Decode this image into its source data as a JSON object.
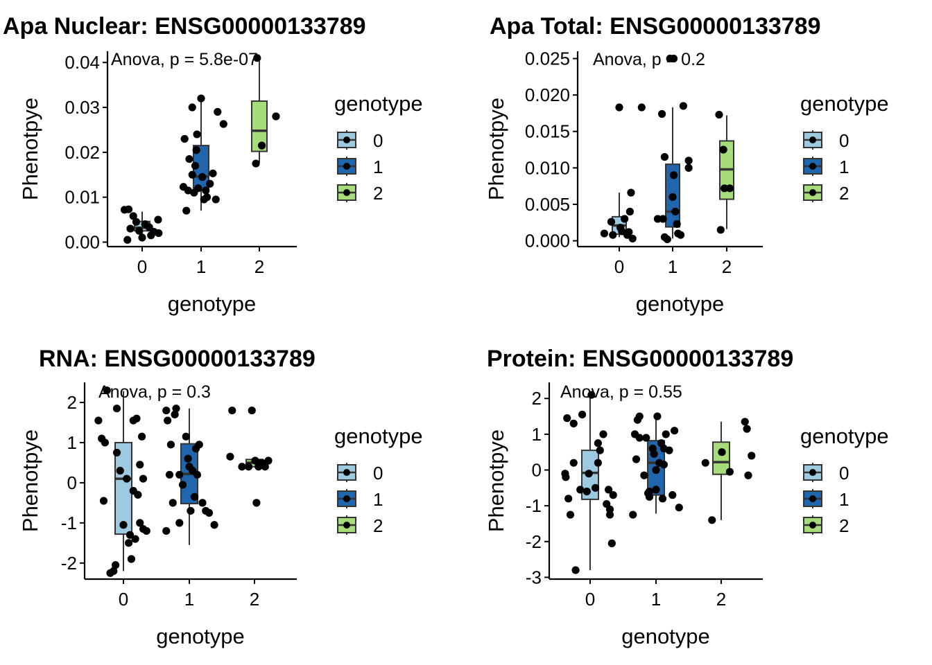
{
  "legend": {
    "title": "genotype",
    "levels": [
      "0",
      "1",
      "2"
    ],
    "colors": [
      "#9ECAE1",
      "#2166AC",
      "#A6DC79"
    ]
  },
  "chart_data": [
    {
      "type": "box",
      "title": "Apa Nuclear: ENSG00000133789",
      "xlabel": "genotype",
      "ylabel": "Phenotpye",
      "categories": [
        "0",
        "1",
        "2"
      ],
      "ylim": [
        -0.001,
        0.0425
      ],
      "yticks": [
        0,
        0.01,
        0.02,
        0.03,
        0.04
      ],
      "ytick_labels": [
        "0.00",
        "0.01",
        "0.02",
        "0.03",
        "0.04"
      ],
      "annotation": "Anova, p = 5.8e-07",
      "boxes": [
        {
          "q1": 0.0025,
          "median": 0.0032,
          "q3": 0.0046,
          "lower": 0.0013,
          "upper": 0.0068
        },
        {
          "q1": 0.0116,
          "median": 0.0146,
          "q3": 0.0215,
          "lower": 0.007,
          "upper": 0.032
        },
        {
          "q1": 0.0202,
          "median": 0.0248,
          "q3": 0.0314,
          "lower": 0.0177,
          "upper": 0.0412
        }
      ],
      "points": [
        {
          "x": -0.3,
          "y": 0.0072
        },
        {
          "x": -0.23,
          "y": 0.0073
        },
        {
          "x": -0.15,
          "y": 0.0058
        },
        {
          "x": -0.1,
          "y": 0.0045
        },
        {
          "x": -0.2,
          "y": 0.003
        },
        {
          "x": -0.05,
          "y": 0.0025
        },
        {
          "x": 0.0,
          "y": 0.001
        },
        {
          "x": 0.05,
          "y": 0.004
        },
        {
          "x": 0.12,
          "y": 0.0033
        },
        {
          "x": 0.2,
          "y": 0.0023
        },
        {
          "x": 0.28,
          "y": 0.002
        },
        {
          "x": 0.27,
          "y": 0.005
        },
        {
          "x": -0.25,
          "y": 0.0005
        },
        {
          "x": 0.15,
          "y": 0.0015
        },
        {
          "x": 0.7,
          "y": 0.0123
        },
        {
          "x": 0.72,
          "y": 0.023
        },
        {
          "x": 0.75,
          "y": 0.007
        },
        {
          "x": 0.78,
          "y": 0.0115
        },
        {
          "x": 0.8,
          "y": 0.0185
        },
        {
          "x": 0.85,
          "y": 0.03
        },
        {
          "x": 0.85,
          "y": 0.015
        },
        {
          "x": 0.88,
          "y": 0.011
        },
        {
          "x": 0.9,
          "y": 0.017
        },
        {
          "x": 0.92,
          "y": 0.0205
        },
        {
          "x": 0.95,
          "y": 0.012
        },
        {
          "x": 1.0,
          "y": 0.032
        },
        {
          "x": 1.02,
          "y": 0.0145
        },
        {
          "x": 1.05,
          "y": 0.0095
        },
        {
          "x": 1.08,
          "y": 0.0115
        },
        {
          "x": 1.1,
          "y": 0.01
        },
        {
          "x": 1.15,
          "y": 0.013
        },
        {
          "x": 1.2,
          "y": 0.0153
        },
        {
          "x": 1.25,
          "y": 0.0095
        },
        {
          "x": 1.28,
          "y": 0.029
        },
        {
          "x": 1.38,
          "y": 0.0263
        },
        {
          "x": 0.93,
          "y": 0.024
        },
        {
          "x": 1.93,
          "y": 0.0175
        },
        {
          "x": 2.03,
          "y": 0.0215
        },
        {
          "x": 1.95,
          "y": 0.041
        },
        {
          "x": 2.27,
          "y": 0.028
        }
      ]
    },
    {
      "type": "box",
      "title": "Apa Total: ENSG00000133789",
      "xlabel": "genotype",
      "ylabel": "Phenotpye",
      "categories": [
        "0",
        "1",
        "2"
      ],
      "ylim": [
        -0.0008,
        0.026
      ],
      "yticks": [
        0,
        0.005,
        0.01,
        0.015,
        0.02,
        0.025
      ],
      "ytick_labels": [
        "0.000",
        "0.005",
        "0.010",
        "0.015",
        "0.020",
        "0.025"
      ],
      "annotation": "Anova, p = 0.2",
      "boxes": [
        {
          "q1": 0.0009,
          "median": 0.0021,
          "q3": 0.0033,
          "lower": 0.0005,
          "upper": 0.0066
        },
        {
          "q1": 0.0019,
          "median": 0.004,
          "q3": 0.0105,
          "lower": 0.0003,
          "upper": 0.0183
        },
        {
          "q1": 0.0057,
          "median": 0.0098,
          "q3": 0.0137,
          "lower": 0.0016,
          "upper": 0.0172
        }
      ],
      "points": [
        {
          "x": -0.28,
          "y": 0.001
        },
        {
          "x": -0.15,
          "y": 0.0026
        },
        {
          "x": -0.12,
          "y": 0.0008
        },
        {
          "x": 0.0,
          "y": 0.0183
        },
        {
          "x": 0.02,
          "y": 0.0018
        },
        {
          "x": 0.05,
          "y": 0.0013
        },
        {
          "x": 0.1,
          "y": 0.003
        },
        {
          "x": 0.15,
          "y": 0.0008
        },
        {
          "x": 0.18,
          "y": 0.0012
        },
        {
          "x": 0.2,
          "y": 0.004
        },
        {
          "x": 0.22,
          "y": 0.0066
        },
        {
          "x": 0.25,
          "y": 0.0003
        },
        {
          "x": 0.42,
          "y": 0.0183
        },
        {
          "x": 0.72,
          "y": 0.003
        },
        {
          "x": 0.8,
          "y": 0.0174
        },
        {
          "x": 0.82,
          "y": 0.003
        },
        {
          "x": 0.85,
          "y": 0.0115
        },
        {
          "x": 0.85,
          "y": 0.0005
        },
        {
          "x": 0.9,
          "y": 0.0002
        },
        {
          "x": 0.95,
          "y": 0.025
        },
        {
          "x": 1.02,
          "y": 0.025
        },
        {
          "x": 1.02,
          "y": 0.009
        },
        {
          "x": 1.05,
          "y": 0.004
        },
        {
          "x": 1.08,
          "y": 0.0023
        },
        {
          "x": 1.1,
          "y": 0.001
        },
        {
          "x": 1.15,
          "y": 0.0008
        },
        {
          "x": 1.2,
          "y": 0.0185
        },
        {
          "x": 1.3,
          "y": 0.011
        },
        {
          "x": 1.3,
          "y": 0.01
        },
        {
          "x": 1.0,
          "y": 0.006
        },
        {
          "x": 1.9,
          "y": 0.0015
        },
        {
          "x": 1.95,
          "y": 0.0125
        },
        {
          "x": 1.97,
          "y": 0.0072
        },
        {
          "x": 2.07,
          "y": 0.0072
        },
        {
          "x": 1.87,
          "y": 0.0173
        }
      ]
    },
    {
      "type": "box",
      "title": "RNA: ENSG00000133789",
      "xlabel": "genotype",
      "ylabel": "Phenotpye",
      "categories": [
        "0",
        "1",
        "2"
      ],
      "ylim": [
        -2.4,
        2.5
      ],
      "yticks": [
        -2,
        -1,
        0,
        1,
        2
      ],
      "ytick_labels": [
        "-2",
        "-1",
        "0",
        "1",
        "2"
      ],
      "annotation": "Anova, p = 0.3",
      "boxes": [
        {
          "q1": -1.28,
          "median": 0.1,
          "q3": 1.0,
          "lower": -2.2,
          "upper": 2.28
        },
        {
          "q1": -0.52,
          "median": 0.22,
          "q3": 0.97,
          "lower": -1.55,
          "upper": 1.85
        },
        {
          "q1": 0.4,
          "median": 0.5,
          "q3": 0.58,
          "lower": 0.4,
          "upper": 0.58
        }
      ],
      "points": [
        {
          "x": -0.38,
          "y": 1.55
        },
        {
          "x": -0.33,
          "y": 1.1
        },
        {
          "x": -0.3,
          "y": -0.45
        },
        {
          "x": -0.28,
          "y": 1.0
        },
        {
          "x": -0.25,
          "y": 2.3
        },
        {
          "x": -0.2,
          "y": -2.25
        },
        {
          "x": -0.15,
          "y": -2.2
        },
        {
          "x": -0.12,
          "y": -2.05
        },
        {
          "x": -0.1,
          "y": 1.85
        },
        {
          "x": -0.1,
          "y": 0.75
        },
        {
          "x": -0.05,
          "y": 0.3
        },
        {
          "x": 0.0,
          "y": -1.05
        },
        {
          "x": 0.05,
          "y": 0.1
        },
        {
          "x": 0.08,
          "y": -1.5
        },
        {
          "x": 0.1,
          "y": -1.3
        },
        {
          "x": 0.12,
          "y": -1.9
        },
        {
          "x": 0.15,
          "y": 1.55
        },
        {
          "x": 0.15,
          "y": -0.2
        },
        {
          "x": 0.18,
          "y": -1.4
        },
        {
          "x": 0.2,
          "y": 1.6
        },
        {
          "x": 0.22,
          "y": -0.3
        },
        {
          "x": 0.25,
          "y": -1.0
        },
        {
          "x": 0.25,
          "y": 0.45
        },
        {
          "x": 0.28,
          "y": 1.15
        },
        {
          "x": 0.3,
          "y": 0.1
        },
        {
          "x": 0.35,
          "y": -1.2
        },
        {
          "x": 0.3,
          "y": -1.15
        },
        {
          "x": 0.65,
          "y": -1.2
        },
        {
          "x": 0.65,
          "y": 1.8
        },
        {
          "x": 0.67,
          "y": 1.55
        },
        {
          "x": 0.7,
          "y": 0.2
        },
        {
          "x": 0.72,
          "y": 0.95
        },
        {
          "x": 0.75,
          "y": -0.5
        },
        {
          "x": 0.78,
          "y": 1.7
        },
        {
          "x": 0.8,
          "y": 1.85
        },
        {
          "x": 0.85,
          "y": -1.0
        },
        {
          "x": 0.85,
          "y": 0.2
        },
        {
          "x": 0.9,
          "y": -0.05
        },
        {
          "x": 0.95,
          "y": 1.15
        },
        {
          "x": 0.98,
          "y": 0.6
        },
        {
          "x": 1.0,
          "y": 0.4
        },
        {
          "x": 1.02,
          "y": -0.7
        },
        {
          "x": 1.05,
          "y": 0.3
        },
        {
          "x": 1.08,
          "y": -0.35
        },
        {
          "x": 1.1,
          "y": 0.85
        },
        {
          "x": 1.12,
          "y": 0.2
        },
        {
          "x": 1.15,
          "y": 0.95
        },
        {
          "x": 1.2,
          "y": -0.5
        },
        {
          "x": 1.25,
          "y": -0.7
        },
        {
          "x": 1.3,
          "y": -0.75
        },
        {
          "x": 1.38,
          "y": -1.05
        },
        {
          "x": 1.65,
          "y": 1.8
        },
        {
          "x": 1.62,
          "y": 0.65
        },
        {
          "x": 1.8,
          "y": 0.4
        },
        {
          "x": 1.95,
          "y": 1.8
        },
        {
          "x": 2.0,
          "y": 0.55
        },
        {
          "x": 2.02,
          "y": -0.5
        },
        {
          "x": 2.05,
          "y": 0.4
        },
        {
          "x": 2.1,
          "y": 0.5
        },
        {
          "x": 2.2,
          "y": 0.55
        },
        {
          "x": 2.15,
          "y": 0.4
        },
        {
          "x": 1.9,
          "y": 0.4
        }
      ]
    },
    {
      "type": "box",
      "title": "Protein: ENSG00000133789",
      "xlabel": "genotype",
      "ylabel": "Phenotpye",
      "categories": [
        "0",
        "1",
        "2"
      ],
      "ylim": [
        -3.05,
        2.45
      ],
      "yticks": [
        -3,
        -2,
        -1,
        0,
        1,
        2
      ],
      "ytick_labels": [
        "-3",
        "-2",
        "-1",
        "0",
        "1",
        "2"
      ],
      "annotation": "Anova, p = 0.55",
      "boxes": [
        {
          "q1": -0.82,
          "median": -0.08,
          "q3": 0.55,
          "lower": -2.8,
          "upper": 2.12
        },
        {
          "q1": -0.7,
          "median": 0.2,
          "q3": 0.82,
          "lower": -1.22,
          "upper": 1.5
        },
        {
          "q1": -0.12,
          "median": 0.22,
          "q3": 0.78,
          "lower": -1.4,
          "upper": 1.35
        }
      ],
      "points": [
        {
          "x": -0.38,
          "y": -0.1
        },
        {
          "x": -0.37,
          "y": -0.2
        },
        {
          "x": -0.35,
          "y": 1.45
        },
        {
          "x": -0.33,
          "y": -0.8
        },
        {
          "x": -0.3,
          "y": -1.25
        },
        {
          "x": -0.25,
          "y": 0.2
        },
        {
          "x": -0.25,
          "y": 1.3
        },
        {
          "x": -0.22,
          "y": -2.8
        },
        {
          "x": -0.15,
          "y": -0.55
        },
        {
          "x": -0.12,
          "y": 1.55
        },
        {
          "x": -0.05,
          "y": -0.6
        },
        {
          "x": 0.02,
          "y": 2.1
        },
        {
          "x": 0.08,
          "y": -0.5
        },
        {
          "x": 0.12,
          "y": 0.75
        },
        {
          "x": 0.12,
          "y": 0.2
        },
        {
          "x": 0.15,
          "y": 0.55
        },
        {
          "x": 0.2,
          "y": 1.0
        },
        {
          "x": 0.25,
          "y": -0.95
        },
        {
          "x": 0.28,
          "y": -0.55
        },
        {
          "x": 0.3,
          "y": -1.25
        },
        {
          "x": 0.3,
          "y": -1.1
        },
        {
          "x": 0.35,
          "y": -0.7
        },
        {
          "x": 0.33,
          "y": -2.05
        },
        {
          "x": -0.02,
          "y": -0.1
        },
        {
          "x": 0.65,
          "y": -1.25
        },
        {
          "x": 0.68,
          "y": 1.0
        },
        {
          "x": 0.7,
          "y": 0.3
        },
        {
          "x": 0.72,
          "y": 1.4
        },
        {
          "x": 0.75,
          "y": 1.5
        },
        {
          "x": 0.75,
          "y": 0.9
        },
        {
          "x": 0.82,
          "y": -0.15
        },
        {
          "x": 0.85,
          "y": 0.9
        },
        {
          "x": 0.88,
          "y": -0.65
        },
        {
          "x": 0.9,
          "y": -0.75
        },
        {
          "x": 0.95,
          "y": 0.6
        },
        {
          "x": 0.97,
          "y": 0.45
        },
        {
          "x": 1.0,
          "y": -0.55
        },
        {
          "x": 1.0,
          "y": 0.0
        },
        {
          "x": 1.02,
          "y": 1.5
        },
        {
          "x": 1.05,
          "y": 0.2
        },
        {
          "x": 1.08,
          "y": 0.75
        },
        {
          "x": 1.1,
          "y": -0.8
        },
        {
          "x": 1.12,
          "y": 0.15
        },
        {
          "x": 1.15,
          "y": 1.0
        },
        {
          "x": 1.2,
          "y": 0.55
        },
        {
          "x": 1.25,
          "y": -0.7
        },
        {
          "x": 1.28,
          "y": 1.1
        },
        {
          "x": 1.35,
          "y": -1.05
        },
        {
          "x": 1.12,
          "y": 0.6
        },
        {
          "x": 0.9,
          "y": -0.6
        },
        {
          "x": 1.75,
          "y": 0.2
        },
        {
          "x": 1.85,
          "y": -1.4
        },
        {
          "x": 2.0,
          "y": 0.5
        },
        {
          "x": 2.12,
          "y": -0.05
        },
        {
          "x": 2.35,
          "y": 1.35
        },
        {
          "x": 2.38,
          "y": 1.15
        },
        {
          "x": 2.4,
          "y": -0.15
        },
        {
          "x": 2.45,
          "y": 0.4
        }
      ]
    }
  ]
}
